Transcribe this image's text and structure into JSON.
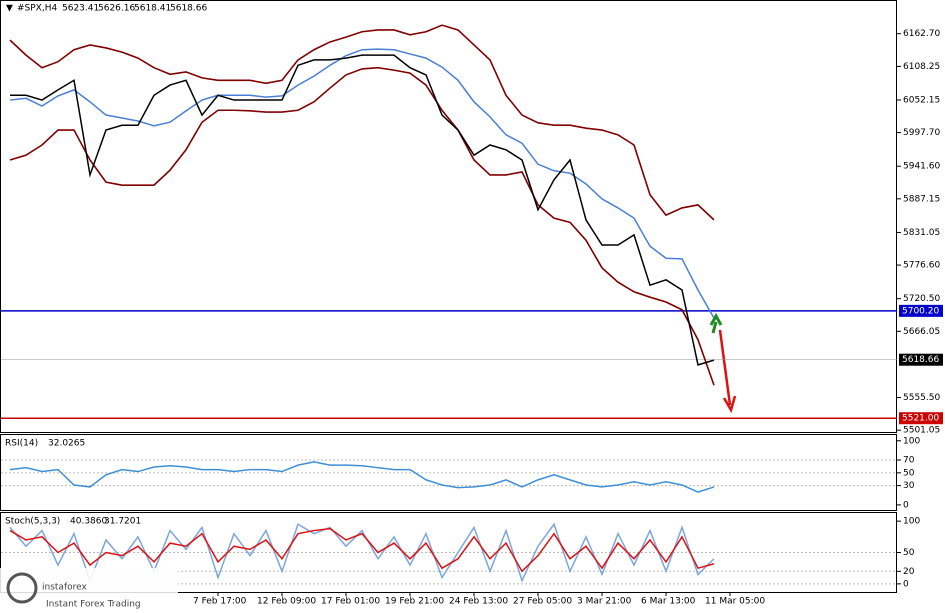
{
  "header": {
    "symbol": "#SPX,H4",
    "ohlc": [
      5623.41,
      5626.16,
      5618.41,
      5618.66
    ]
  },
  "branding": {
    "name": "instaforex",
    "tagline": "Instant Forex Trading"
  },
  "chart_data": [
    {
      "type": "line",
      "title": "#SPX,H4",
      "ylim": [
        5498,
        6219
      ],
      "yticks": [
        {
          "value": 6162.7,
          "label": "6162.70"
        },
        {
          "value": 6108.25,
          "label": "6108.25"
        },
        {
          "value": 6052.15,
          "label": "6052.15"
        },
        {
          "value": 5997.7,
          "label": "5997.70"
        },
        {
          "value": 5941.6,
          "label": "5941.60"
        },
        {
          "value": 5887.15,
          "label": "5887.15"
        },
        {
          "value": 5831.05,
          "label": "5831.05"
        },
        {
          "value": 5776.6,
          "label": "5776.60"
        },
        {
          "value": 5720.5,
          "label": "5720.50"
        },
        {
          "value": 5666.05,
          "label": "5666.05"
        },
        {
          "value": 5555.5,
          "label": "5555.50"
        },
        {
          "value": 5501.05,
          "label": "5501.05"
        }
      ],
      "grid": false,
      "hlines": [
        {
          "value": 5700.2,
          "label": "5700.20",
          "color": "#0000cc"
        },
        {
          "value": 5521,
          "label": "5521.00",
          "color": "#cc0000"
        }
      ],
      "current": {
        "value": 5618.66,
        "label": "5618.66"
      },
      "series": [
        {
          "color": "#800000",
          "values": [
            6152,
            6127,
            6106,
            6116,
            6136,
            6144,
            6139,
            6132,
            6122,
            6106,
            6095,
            6099,
            6089,
            6085,
            6085,
            6085,
            6080,
            6085,
            6119,
            6136,
            6149,
            6157,
            6166,
            6169,
            6169,
            6161,
            6166,
            6177,
            6169,
            6144,
            6119,
            6060,
            6027,
            6014,
            6010,
            6010,
            6005,
            6002,
            5994,
            5977,
            5894,
            5860,
            5872,
            5877,
            5852,
            null
          ]
        },
        {
          "color": "#800000",
          "values": [
            5952,
            5960,
            5977,
            6002,
            6002,
            5952,
            5915,
            5910,
            5910,
            5910,
            5935,
            5969,
            6015,
            6035,
            6035,
            6034,
            6032,
            6032,
            6035,
            6049,
            6072,
            6094,
            6104,
            6106,
            6102,
            6097,
            6077,
            6035,
            6002,
            5952,
            5927,
            5927,
            5932,
            5877,
            5855,
            5848,
            5818,
            5772,
            5748,
            5732,
            5723,
            5715,
            5702,
            5652,
            5576,
            null
          ]
        },
        {
          "color": "#4a7fd4",
          "values": [
            6052,
            6055,
            6042,
            6059,
            6069,
            6049,
            6027,
            6022,
            6017,
            6009,
            6015,
            6034,
            6052,
            6060,
            6060,
            6060,
            6057,
            6059,
            6077,
            6092,
            6110,
            6126,
            6136,
            6137,
            6136,
            6129,
            6122,
            6107,
            6085,
            6049,
            6024,
            5994,
            5980,
            5945,
            5934,
            5930,
            5912,
            5887,
            5872,
            5855,
            5808,
            5788,
            5787,
            5735,
            5688,
            null
          ]
        },
        {
          "color": "#000000",
          "values": [
            6060,
            6060,
            6052,
            6069,
            6085,
            5927,
            6002,
            6010,
            6010,
            6060,
            6077,
            6085,
            6027,
            6060,
            6052,
            6052,
            6052,
            6052,
            6110,
            6119,
            6119,
            6122,
            6127,
            6127,
            6127,
            6106,
            6094,
            6027,
            6002,
            5960,
            5977,
            5969,
            5952,
            5869,
            5919,
            5952,
            5852,
            5810,
            5810,
            5827,
            5743,
            5752,
            5735,
            5610,
            5618,
            null
          ]
        }
      ]
    },
    {
      "type": "line",
      "title": "RSI(14)",
      "indicator_values": [
        32.0265
      ],
      "ylim": [
        -8,
        109
      ],
      "yticks": [
        100,
        70,
        50,
        30,
        0
      ],
      "grid": true,
      "series": [
        {
          "color": "#3d8fd6",
          "values": [
            55,
            58,
            52,
            55,
            31,
            28,
            47,
            55,
            52,
            59,
            61,
            59,
            55,
            55,
            52,
            55,
            55,
            52,
            62,
            67,
            62,
            62,
            61,
            58,
            55,
            55,
            39,
            31,
            27,
            28,
            31,
            39,
            28,
            39,
            47,
            39,
            31,
            28,
            31,
            36,
            31,
            36,
            31,
            20,
            28,
            null
          ]
        }
      ]
    },
    {
      "type": "line",
      "title": "Stoch(5,3,3)",
      "indicator_values": [
        {
          "value": 40.386,
          "label": "40.3860"
        },
        31.7201
      ],
      "ylim": [
        -13,
        113
      ],
      "yticks": [
        100,
        50,
        20,
        0
      ],
      "grid": true,
      "categories": [
        null,
        null,
        null,
        null,
        null,
        null,
        null,
        null,
        null,
        null,
        null,
        null,
        null,
        "7 Feb 17:00",
        null,
        null,
        null,
        "12 Feb 09:00",
        null,
        null,
        null,
        "17 Feb 01:00",
        null,
        null,
        null,
        "19 Feb 21:00",
        null,
        null,
        null,
        "24 Feb 13:00",
        null,
        null,
        null,
        "27 Feb 05:00",
        null,
        null,
        null,
        "3 Mar 21:00",
        null,
        null,
        null,
        "6 Mar 13:00",
        null,
        null,
        null,
        "11 Mar 05:00"
      ],
      "series": [
        {
          "color": "#7aa6e0",
          "values": [
            90,
            60,
            85,
            30,
            80,
            5,
            70,
            40,
            75,
            20,
            85,
            55,
            90,
            10,
            80,
            45,
            85,
            20,
            95,
            80,
            90,
            60,
            85,
            40,
            75,
            30,
            80,
            10,
            50,
            90,
            20,
            85,
            5,
            60,
            95,
            20,
            75,
            15,
            80,
            30,
            85,
            20,
            90,
            15,
            40,
            null
          ]
        },
        {
          "color": "#e01010",
          "values": [
            85,
            70,
            75,
            50,
            65,
            30,
            50,
            45,
            60,
            35,
            65,
            60,
            80,
            35,
            60,
            55,
            70,
            40,
            80,
            85,
            88,
            70,
            80,
            50,
            65,
            40,
            65,
            25,
            40,
            75,
            40,
            65,
            20,
            45,
            80,
            40,
            60,
            25,
            65,
            40,
            70,
            35,
            75,
            25,
            32,
            null
          ]
        }
      ]
    }
  ]
}
